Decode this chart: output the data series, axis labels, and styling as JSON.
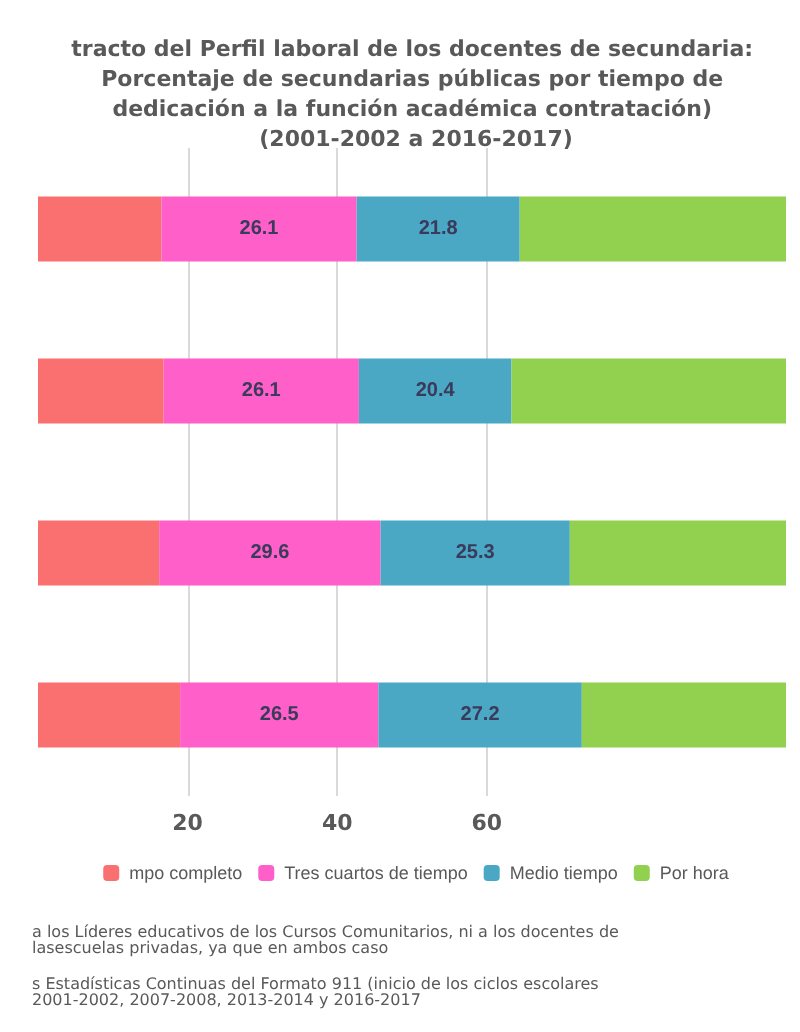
{
  "chart_data": {
    "type": "bar",
    "orientation": "horizontal",
    "stacked": true,
    "title": "tracto del Perfil laboral de los docentes de secundaria: Porcentaje de secundarias públicas por tiempo de dedicación a la función académica contratación) (2001-2002 a 2016-2017)",
    "categories": [
      null,
      null,
      null,
      null
    ],
    "series": [
      {
        "name": "mpo completo",
        "color": "#fa7070",
        "values": [
          16.5,
          16.8,
          16.2,
          19.0
        ],
        "value_labels": [
          null,
          null,
          null,
          null
        ]
      },
      {
        "name": "Tres cuartos de tiempo",
        "color": "#ff5fc8",
        "values": [
          26.1,
          26.1,
          29.6,
          26.5
        ],
        "value_labels": [
          "26.1",
          "26.1",
          "29.6",
          "26.5"
        ]
      },
      {
        "name": "Medio tiempo",
        "color": "#4aa8c4",
        "values": [
          21.8,
          20.4,
          25.3,
          27.2
        ],
        "value_labels": [
          "21.8",
          "20.4",
          "25.3",
          "27.2"
        ]
      },
      {
        "name": "Por hora",
        "color": "#92d050",
        "values": [
          35.6,
          36.7,
          28.9,
          27.3
        ],
        "value_labels": [
          null,
          null,
          null,
          null
        ]
      }
    ],
    "xlim": [
      0,
      100
    ],
    "xticks": [
      20,
      40,
      60
    ],
    "grid": "x",
    "legend": "bottom",
    "annotations": [
      "a los Líderes educativos de los Cursos Comunitarios, ni a los docentes de lasescuelas privadas, ya que en ambos caso",
      "s Estadísticas Continuas del Formato 911 (inicio de los ciclos escolares 2001-2002, 2007-2008, 2013-2014 y 2016-2017"
    ]
  }
}
